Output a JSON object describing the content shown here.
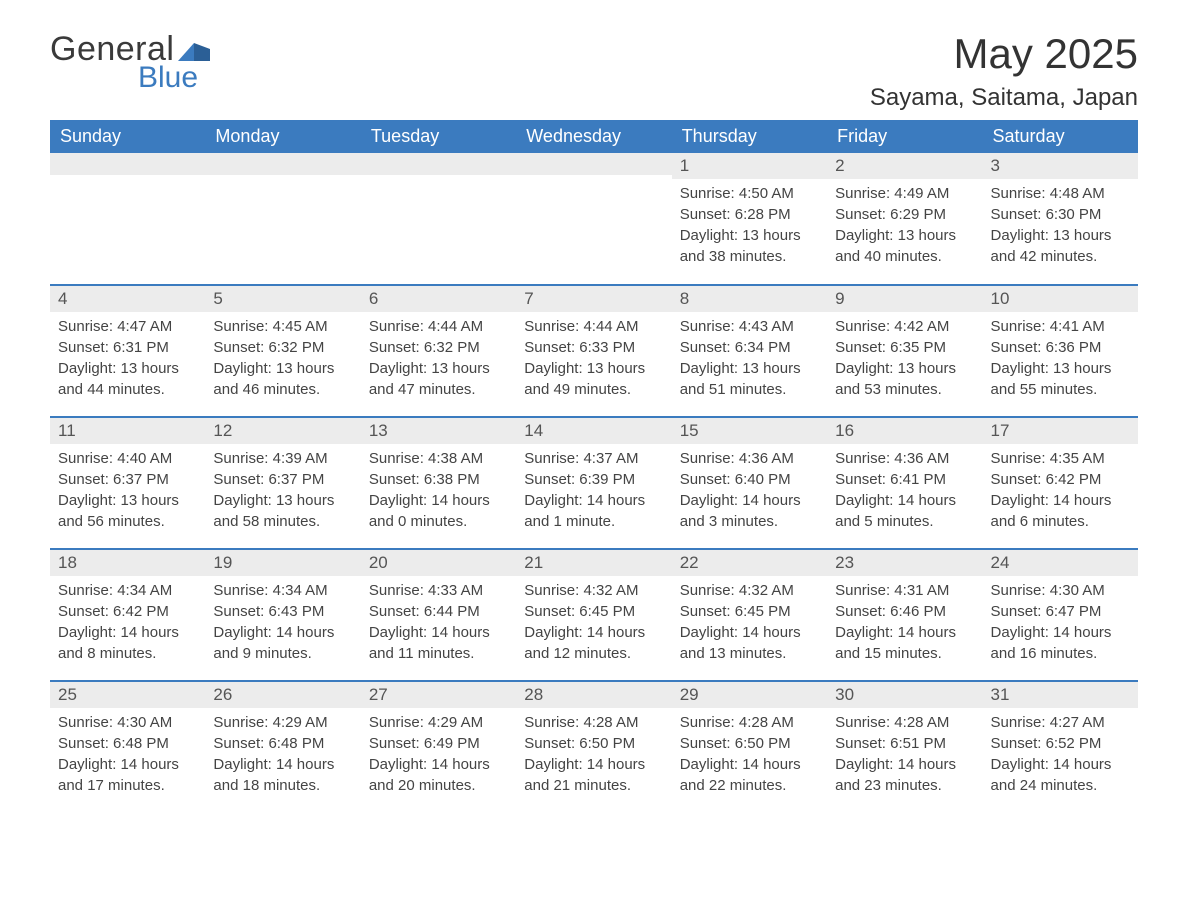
{
  "branding": {
    "word1": "General",
    "word2": "Blue",
    "text_color": "#3a3a3a",
    "accent_color": "#3b7bbf"
  },
  "header": {
    "month_title": "May 2025",
    "location": "Sayama, Saitama, Japan"
  },
  "calendar": {
    "header_bg": "#3b7bbf",
    "header_text_color": "#ffffff",
    "daynum_bg": "#ececec",
    "row_sep_color": "#3b7bbf",
    "day_headers": [
      "Sunday",
      "Monday",
      "Tuesday",
      "Wednesday",
      "Thursday",
      "Friday",
      "Saturday"
    ],
    "weeks": [
      [
        null,
        null,
        null,
        null,
        {
          "num": "1",
          "sunrise": "Sunrise: 4:50 AM",
          "sunset": "Sunset: 6:28 PM",
          "daylight1": "Daylight: 13 hours",
          "daylight2": "and 38 minutes."
        },
        {
          "num": "2",
          "sunrise": "Sunrise: 4:49 AM",
          "sunset": "Sunset: 6:29 PM",
          "daylight1": "Daylight: 13 hours",
          "daylight2": "and 40 minutes."
        },
        {
          "num": "3",
          "sunrise": "Sunrise: 4:48 AM",
          "sunset": "Sunset: 6:30 PM",
          "daylight1": "Daylight: 13 hours",
          "daylight2": "and 42 minutes."
        }
      ],
      [
        {
          "num": "4",
          "sunrise": "Sunrise: 4:47 AM",
          "sunset": "Sunset: 6:31 PM",
          "daylight1": "Daylight: 13 hours",
          "daylight2": "and 44 minutes."
        },
        {
          "num": "5",
          "sunrise": "Sunrise: 4:45 AM",
          "sunset": "Sunset: 6:32 PM",
          "daylight1": "Daylight: 13 hours",
          "daylight2": "and 46 minutes."
        },
        {
          "num": "6",
          "sunrise": "Sunrise: 4:44 AM",
          "sunset": "Sunset: 6:32 PM",
          "daylight1": "Daylight: 13 hours",
          "daylight2": "and 47 minutes."
        },
        {
          "num": "7",
          "sunrise": "Sunrise: 4:44 AM",
          "sunset": "Sunset: 6:33 PM",
          "daylight1": "Daylight: 13 hours",
          "daylight2": "and 49 minutes."
        },
        {
          "num": "8",
          "sunrise": "Sunrise: 4:43 AM",
          "sunset": "Sunset: 6:34 PM",
          "daylight1": "Daylight: 13 hours",
          "daylight2": "and 51 minutes."
        },
        {
          "num": "9",
          "sunrise": "Sunrise: 4:42 AM",
          "sunset": "Sunset: 6:35 PM",
          "daylight1": "Daylight: 13 hours",
          "daylight2": "and 53 minutes."
        },
        {
          "num": "10",
          "sunrise": "Sunrise: 4:41 AM",
          "sunset": "Sunset: 6:36 PM",
          "daylight1": "Daylight: 13 hours",
          "daylight2": "and 55 minutes."
        }
      ],
      [
        {
          "num": "11",
          "sunrise": "Sunrise: 4:40 AM",
          "sunset": "Sunset: 6:37 PM",
          "daylight1": "Daylight: 13 hours",
          "daylight2": "and 56 minutes."
        },
        {
          "num": "12",
          "sunrise": "Sunrise: 4:39 AM",
          "sunset": "Sunset: 6:37 PM",
          "daylight1": "Daylight: 13 hours",
          "daylight2": "and 58 minutes."
        },
        {
          "num": "13",
          "sunrise": "Sunrise: 4:38 AM",
          "sunset": "Sunset: 6:38 PM",
          "daylight1": "Daylight: 14 hours",
          "daylight2": "and 0 minutes."
        },
        {
          "num": "14",
          "sunrise": "Sunrise: 4:37 AM",
          "sunset": "Sunset: 6:39 PM",
          "daylight1": "Daylight: 14 hours",
          "daylight2": "and 1 minute."
        },
        {
          "num": "15",
          "sunrise": "Sunrise: 4:36 AM",
          "sunset": "Sunset: 6:40 PM",
          "daylight1": "Daylight: 14 hours",
          "daylight2": "and 3 minutes."
        },
        {
          "num": "16",
          "sunrise": "Sunrise: 4:36 AM",
          "sunset": "Sunset: 6:41 PM",
          "daylight1": "Daylight: 14 hours",
          "daylight2": "and 5 minutes."
        },
        {
          "num": "17",
          "sunrise": "Sunrise: 4:35 AM",
          "sunset": "Sunset: 6:42 PM",
          "daylight1": "Daylight: 14 hours",
          "daylight2": "and 6 minutes."
        }
      ],
      [
        {
          "num": "18",
          "sunrise": "Sunrise: 4:34 AM",
          "sunset": "Sunset: 6:42 PM",
          "daylight1": "Daylight: 14 hours",
          "daylight2": "and 8 minutes."
        },
        {
          "num": "19",
          "sunrise": "Sunrise: 4:34 AM",
          "sunset": "Sunset: 6:43 PM",
          "daylight1": "Daylight: 14 hours",
          "daylight2": "and 9 minutes."
        },
        {
          "num": "20",
          "sunrise": "Sunrise: 4:33 AM",
          "sunset": "Sunset: 6:44 PM",
          "daylight1": "Daylight: 14 hours",
          "daylight2": "and 11 minutes."
        },
        {
          "num": "21",
          "sunrise": "Sunrise: 4:32 AM",
          "sunset": "Sunset: 6:45 PM",
          "daylight1": "Daylight: 14 hours",
          "daylight2": "and 12 minutes."
        },
        {
          "num": "22",
          "sunrise": "Sunrise: 4:32 AM",
          "sunset": "Sunset: 6:45 PM",
          "daylight1": "Daylight: 14 hours",
          "daylight2": "and 13 minutes."
        },
        {
          "num": "23",
          "sunrise": "Sunrise: 4:31 AM",
          "sunset": "Sunset: 6:46 PM",
          "daylight1": "Daylight: 14 hours",
          "daylight2": "and 15 minutes."
        },
        {
          "num": "24",
          "sunrise": "Sunrise: 4:30 AM",
          "sunset": "Sunset: 6:47 PM",
          "daylight1": "Daylight: 14 hours",
          "daylight2": "and 16 minutes."
        }
      ],
      [
        {
          "num": "25",
          "sunrise": "Sunrise: 4:30 AM",
          "sunset": "Sunset: 6:48 PM",
          "daylight1": "Daylight: 14 hours",
          "daylight2": "and 17 minutes."
        },
        {
          "num": "26",
          "sunrise": "Sunrise: 4:29 AM",
          "sunset": "Sunset: 6:48 PM",
          "daylight1": "Daylight: 14 hours",
          "daylight2": "and 18 minutes."
        },
        {
          "num": "27",
          "sunrise": "Sunrise: 4:29 AM",
          "sunset": "Sunset: 6:49 PM",
          "daylight1": "Daylight: 14 hours",
          "daylight2": "and 20 minutes."
        },
        {
          "num": "28",
          "sunrise": "Sunrise: 4:28 AM",
          "sunset": "Sunset: 6:50 PM",
          "daylight1": "Daylight: 14 hours",
          "daylight2": "and 21 minutes."
        },
        {
          "num": "29",
          "sunrise": "Sunrise: 4:28 AM",
          "sunset": "Sunset: 6:50 PM",
          "daylight1": "Daylight: 14 hours",
          "daylight2": "and 22 minutes."
        },
        {
          "num": "30",
          "sunrise": "Sunrise: 4:28 AM",
          "sunset": "Sunset: 6:51 PM",
          "daylight1": "Daylight: 14 hours",
          "daylight2": "and 23 minutes."
        },
        {
          "num": "31",
          "sunrise": "Sunrise: 4:27 AM",
          "sunset": "Sunset: 6:52 PM",
          "daylight1": "Daylight: 14 hours",
          "daylight2": "and 24 minutes."
        }
      ]
    ]
  }
}
